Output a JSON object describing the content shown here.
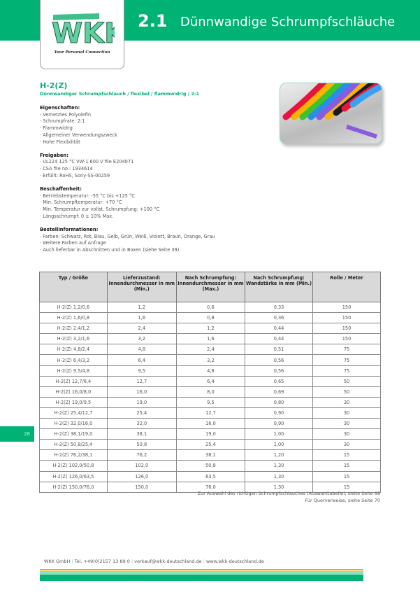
{
  "header": {
    "chapter": "2.1",
    "title": "Dünnwandige Schrumpfschläuche",
    "logo_text": "WKK",
    "tagline": "Your Personal Connection"
  },
  "product": {
    "title": "H-2(Z)",
    "subtitle": "Dünnwandiger Schrumpfschlauch / flexibel / flammwidrig / 2:1"
  },
  "sections": [
    {
      "heading": "Eigenschaften:",
      "items": [
        "Vernetztes Polyolefin",
        "Schrumpfrate: 2:1",
        "Flammwidrig",
        "Allgemeiner Verwendungszweck",
        "Hohe Flexibilität"
      ]
    },
    {
      "heading": "Freigaben:",
      "items": [
        "UL224 125 °C VW-1 600 V file E204071",
        "CSA file no.: 1934614",
        "Erfüllt: RoHS, Sony-SS-00259"
      ]
    },
    {
      "heading": "Beschaffenheit:",
      "items": [
        "Betriebstemperatur: -55 °C bis +125 °C",
        "Min. Schrumpftemperatur: +70 °C",
        "Min. Temperatur zur vollst. Schrumpfung: +100 °C",
        "Längsschrumpf: 0 ± 10% Max."
      ]
    },
    {
      "heading": "Bestellinformationen:",
      "items": [
        "Farben: Schwarz, Rot, Blau, Gelb, Grün, Weiß, Violett, Braun, Orange, Grau",
        "Weitere Farben auf Anfrage",
        "Auch lieferbar in Abschnitten und in Boxen (siehe Seite 39)"
      ]
    }
  ],
  "table": {
    "headers": [
      "Typ / Größe",
      "Lieferzustand: Innendurchmesser in mm (Min.)",
      "Nach Schrumpfung: Innendurchmesser in mm (Max.)",
      "Nach Schrumpfung: Wandstärke in mm (Min.)",
      "Rolle / Meter"
    ],
    "rows": [
      [
        "H-2(Z) 1,2/0,6",
        "1,2",
        "0,6",
        "0,33",
        "150"
      ],
      [
        "H-2(Z) 1,6/0,8",
        "1,6",
        "0,8",
        "0,36",
        "150"
      ],
      [
        "H-2(Z) 2,4/1,2",
        "2,4",
        "1,2",
        "0,44",
        "150"
      ],
      [
        "H-2(Z) 3,2/1,6",
        "3,2",
        "1,6",
        "0,44",
        "150"
      ],
      [
        "H-2(Z) 4,8/2,4",
        "4,8",
        "2,4",
        "0,51",
        "75"
      ],
      [
        "H-2(Z) 6,4/3,2",
        "6,4",
        "3,2",
        "0,56",
        "75"
      ],
      [
        "H-2(Z) 9,5/4,8",
        "9,5",
        "4,8",
        "0,56",
        "75"
      ],
      [
        "H-2(Z) 12,7/6,4",
        "12,7",
        "6,4",
        "0,65",
        "50"
      ],
      [
        "H-2(Z) 16,0/8,0",
        "16,0",
        "8,0",
        "0,69",
        "50"
      ],
      [
        "H-2(Z) 19,0/9,5",
        "19,0",
        "9,5",
        "0,80",
        "30"
      ],
      [
        "H-2(Z) 25,4/12,7",
        "25,4",
        "12,7",
        "0,90",
        "30"
      ],
      [
        "H-2(Z) 32,0/16,0",
        "32,0",
        "16,0",
        "0,90",
        "30"
      ],
      [
        "H-2(Z) 38,1/19,0",
        "38,1",
        "19,0",
        "1,00",
        "30"
      ],
      [
        "H-2(Z) 50,8/25,4",
        "50,8",
        "25,4",
        "1,00",
        "30"
      ],
      [
        "H-2(Z) 76,2/38,1",
        "76,2",
        "38,1",
        "1,20",
        "15"
      ],
      [
        "H-2(Z) 102,0/50,8",
        "102,0",
        "50,8",
        "1,30",
        "15"
      ],
      [
        "H-2(Z) 126,0/63,5",
        "126,0",
        "63,5",
        "1,30",
        "15"
      ],
      [
        "H-2(Z) 150,0/76,0",
        "150,0",
        "76,0",
        "1,30",
        "15"
      ]
    ]
  },
  "notes": [
    "Zur Auswahl des richtigen Schrumpfschlauches (Auswahltabelle), siehe Seite 68",
    "Für Querverweise, siehe Seite 70"
  ],
  "page_number": "28",
  "footer": {
    "company": "WKK GmbH",
    "phone": "Tel. +49(0)2157 13 89 0",
    "email": "verkauf@wkk-deutschland.de",
    "web": "www.wkk-deutschland.de"
  },
  "colors": {
    "brand_green": "#00b274",
    "light_green": "#86e0bc",
    "orange": "#f5a800"
  },
  "tube_colors": [
    "#e8143c",
    "#f7b400",
    "#3cc42c",
    "#2a8ee8",
    "#8a5ae0",
    "#f7b400",
    "#1a1a1a",
    "#e8143c",
    "#3aa0f0"
  ]
}
